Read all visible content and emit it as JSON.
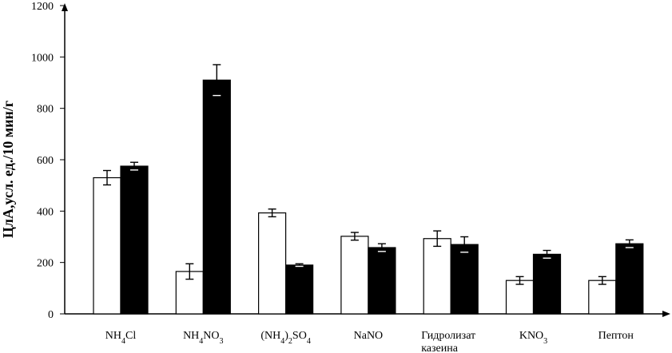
{
  "chart_data": {
    "type": "bar",
    "title": "",
    "xlabel": "",
    "ylabel": "ЦлА,усл. ед./10 мин/г",
    "ylim": [
      0,
      1200
    ],
    "yticks": [
      "0",
      "200",
      "400",
      "600",
      "800",
      "1000",
      "1200"
    ],
    "grid": false,
    "categories": [
      [
        "NH4Cl"
      ],
      [
        "NH4NO3"
      ],
      [
        "(NH4)2SO4"
      ],
      [
        "NaNO"
      ],
      [
        "Гидролизат",
        "казеина"
      ],
      [
        "KNO3"
      ],
      [
        "Пептон"
      ]
    ],
    "series": [
      {
        "name": "series-1",
        "fill": "#ffffff",
        "values": [
          530,
          165,
          393,
          302,
          293,
          130,
          130
        ],
        "errors": [
          28,
          30,
          15,
          15,
          30,
          15,
          15
        ]
      },
      {
        "name": "series-2",
        "fill": "#000000",
        "values": [
          575,
          910,
          190,
          258,
          270,
          232,
          273
        ],
        "errors": [
          15,
          60,
          5,
          15,
          30,
          15,
          15
        ]
      }
    ]
  }
}
